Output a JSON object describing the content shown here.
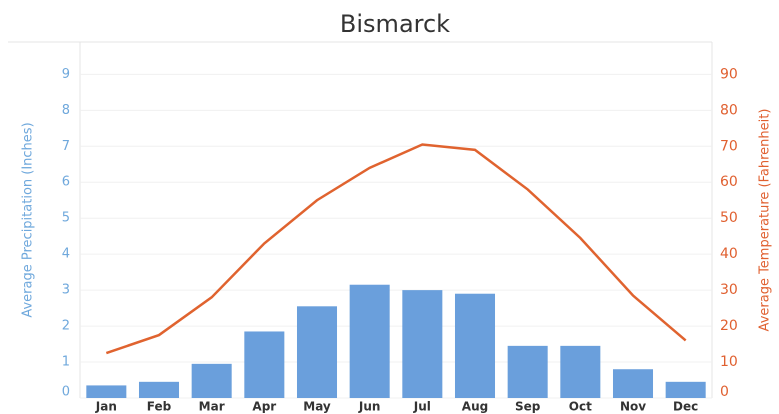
{
  "chart_data": {
    "type": "bar-line",
    "title": "Bismarck",
    "categories": [
      "Jan",
      "Feb",
      "Mar",
      "Apr",
      "May",
      "Jun",
      "Jul",
      "Aug",
      "Sep",
      "Oct",
      "Nov",
      "Dec"
    ],
    "ylabel": "Average Precipitation (Inches)",
    "y2label": "Average Temperature (Fahrenheit)",
    "series": [
      {
        "name": "Average Precipitation (Inches)",
        "type": "bar",
        "color": "#6a9fdc",
        "values": [
          0.35,
          0.45,
          0.95,
          1.85,
          2.55,
          3.15,
          3.0,
          2.9,
          1.45,
          1.45,
          0.8,
          0.45
        ]
      },
      {
        "name": "Average Temperature (Fahrenheit)",
        "type": "line",
        "axis": "y2",
        "color": "#e0632f",
        "values": [
          12.5,
          17.5,
          28,
          43,
          55,
          64,
          70.5,
          69,
          58,
          44.5,
          28.5,
          16
        ]
      }
    ],
    "ylim": [
      0,
      9.9
    ],
    "yticks": [
      0,
      1,
      2,
      3,
      4,
      5,
      6,
      7,
      8,
      9
    ],
    "y2lim": [
      0,
      99
    ],
    "y2ticks": [
      0,
      10,
      20,
      30,
      40,
      50,
      60,
      70,
      80,
      90
    ],
    "grid": true
  }
}
